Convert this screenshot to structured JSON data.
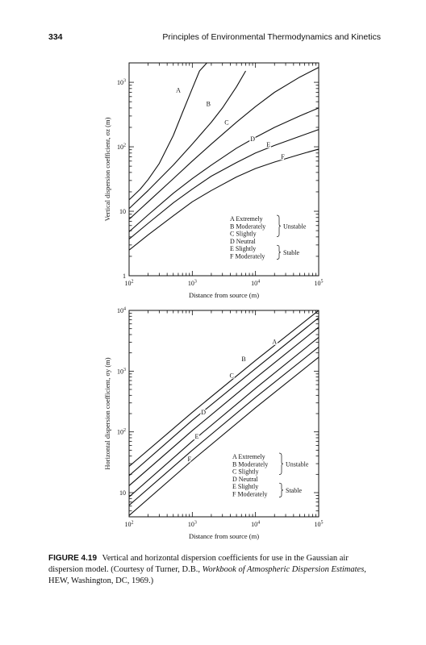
{
  "page": {
    "page_number": "334",
    "running_title": "Principles of Environmental Thermodynamics and Kinetics"
  },
  "caption": {
    "label": "FIGURE 4.19",
    "text_before_italic": "Vertical and horizontal dispersion coefficients for use in the Gaussian air dispersion model. (Courtesy of Turner, D.B., ",
    "italic": "Workbook of Atmospheric Dispersion Estimates",
    "text_after_italic": ", HEW, Washington, DC, 1969.)"
  },
  "chart_data": [
    {
      "type": "line",
      "panel": "top",
      "xlabel": "Distance from source (m)",
      "ylabel": "Vertical dispersion coefficient, σz (m)",
      "xscale": "log",
      "yscale": "log",
      "xlim": [
        100,
        100000
      ],
      "ylim": [
        1,
        2000
      ],
      "x_ticks": [
        {
          "v": 100,
          "base": "10",
          "exp": "2"
        },
        {
          "v": 1000,
          "base": "10",
          "exp": "3"
        },
        {
          "v": 10000,
          "base": "10",
          "exp": "4"
        },
        {
          "v": 100000,
          "base": "10",
          "exp": "5"
        }
      ],
      "y_ticks": [
        {
          "v": 1,
          "base": "1",
          "exp": ""
        },
        {
          "v": 10,
          "base": "10",
          "exp": ""
        },
        {
          "v": 100,
          "base": "10",
          "exp": "2"
        },
        {
          "v": 1000,
          "base": "10",
          "exp": "3"
        }
      ],
      "series": [
        {
          "name": "A",
          "x": [
            100,
            150,
            200,
            300,
            500,
            700,
            1000,
            1300,
            1700
          ],
          "y": [
            15,
            22,
            31,
            55,
            150,
            340,
            800,
            1500,
            2000
          ],
          "label_at": [
            600,
            700
          ]
        },
        {
          "name": "B",
          "x": [
            100,
            200,
            500,
            1000,
            2000,
            3000,
            5000,
            7000
          ],
          "y": [
            11,
            21,
            52,
            110,
            240,
            400,
            850,
            1500
          ],
          "label_at": [
            1800,
            430
          ]
        },
        {
          "name": "C",
          "x": [
            100,
            200,
            500,
            1000,
            2000,
            5000,
            10000,
            20000,
            50000,
            100000
          ],
          "y": [
            7.5,
            14,
            32,
            60,
            110,
            240,
            420,
            700,
            1200,
            1700
          ],
          "label_at": [
            3500,
            220
          ]
        },
        {
          "name": "D",
          "x": [
            100,
            200,
            500,
            1000,
            2000,
            5000,
            10000,
            20000,
            50000,
            100000
          ],
          "y": [
            4.8,
            8.8,
            19,
            32,
            52,
            95,
            140,
            200,
            300,
            400
          ],
          "label_at": [
            9000,
            122
          ]
        },
        {
          "name": "E",
          "x": [
            100,
            200,
            500,
            1000,
            2000,
            5000,
            10000,
            20000,
            50000,
            100000
          ],
          "y": [
            3.7,
            6.5,
            13.5,
            22,
            35,
            57,
            80,
            105,
            145,
            185
          ],
          "label_at": [
            16000,
            100
          ]
        },
        {
          "name": "F",
          "x": [
            100,
            200,
            500,
            1000,
            2000,
            5000,
            10000,
            20000,
            50000,
            100000
          ],
          "y": [
            2.5,
            4.3,
            8.5,
            14,
            21,
            34,
            46,
            58,
            76,
            92
          ],
          "label_at": [
            27000,
            65
          ]
        }
      ],
      "legend": [
        {
          "text": "A  Extremely"
        },
        {
          "text": "B  Moderately"
        },
        {
          "text": "C  Slightly"
        },
        {
          "text": "D  Neutral"
        },
        {
          "text": "E  Slightly"
        },
        {
          "text": "F  Moderately"
        }
      ],
      "legend_groups": {
        "unstable": "Unstable",
        "stable": "Stable"
      }
    },
    {
      "type": "line",
      "panel": "bottom",
      "xlabel": "Distance from source (m)",
      "ylabel": "Horizontal dispersion coefficient, σy (m)",
      "xscale": "log",
      "yscale": "log",
      "xlim": [
        100,
        100000
      ],
      "ylim": [
        4,
        10000
      ],
      "x_ticks": [
        {
          "v": 100,
          "base": "10",
          "exp": "2"
        },
        {
          "v": 1000,
          "base": "10",
          "exp": "3"
        },
        {
          "v": 10000,
          "base": "10",
          "exp": "4"
        },
        {
          "v": 100000,
          "base": "10",
          "exp": "5"
        }
      ],
      "y_ticks": [
        {
          "v": 10,
          "base": "10",
          "exp": ""
        },
        {
          "v": 100,
          "base": "10",
          "exp": "2"
        },
        {
          "v": 1000,
          "base": "10",
          "exp": "3"
        },
        {
          "v": 10000,
          "base": "10",
          "exp": "4"
        }
      ],
      "series": [
        {
          "name": "A",
          "x": [
            100,
            1000,
            10000,
            100000
          ],
          "y": [
            27,
            210,
            1500,
            10000
          ],
          "label_at": [
            20000,
            2800
          ]
        },
        {
          "name": "B",
          "x": [
            100,
            1000,
            10000,
            100000
          ],
          "y": [
            19,
            155,
            1100,
            7600
          ],
          "label_at": [
            6500,
            1450
          ]
        },
        {
          "name": "C",
          "x": [
            100,
            1000,
            10000,
            100000
          ],
          "y": [
            13,
            105,
            770,
            5300
          ],
          "label_at": [
            4200,
            780
          ]
        },
        {
          "name": "D",
          "x": [
            100,
            1000,
            10000,
            100000
          ],
          "y": [
            8.5,
            70,
            520,
            3600
          ],
          "label_at": [
            1500,
            195
          ]
        },
        {
          "name": "E",
          "x": [
            100,
            1000,
            10000,
            100000
          ],
          "y": [
            6.2,
            50,
            370,
            2500
          ],
          "label_at": [
            1180,
            78
          ]
        },
        {
          "name": "F",
          "x": [
            100,
            1000,
            10000,
            100000
          ],
          "y": [
            4.2,
            34,
            250,
            1700
          ],
          "label_at": [
            900,
            33
          ]
        }
      ],
      "legend": [
        {
          "text": "A  Extremely"
        },
        {
          "text": "B  Moderately"
        },
        {
          "text": "C  Slightly"
        },
        {
          "text": "D  Neutral"
        },
        {
          "text": "E  Slightly"
        },
        {
          "text": "F  Moderately"
        }
      ],
      "legend_groups": {
        "unstable": "Unstable",
        "stable": "Stable"
      }
    }
  ]
}
